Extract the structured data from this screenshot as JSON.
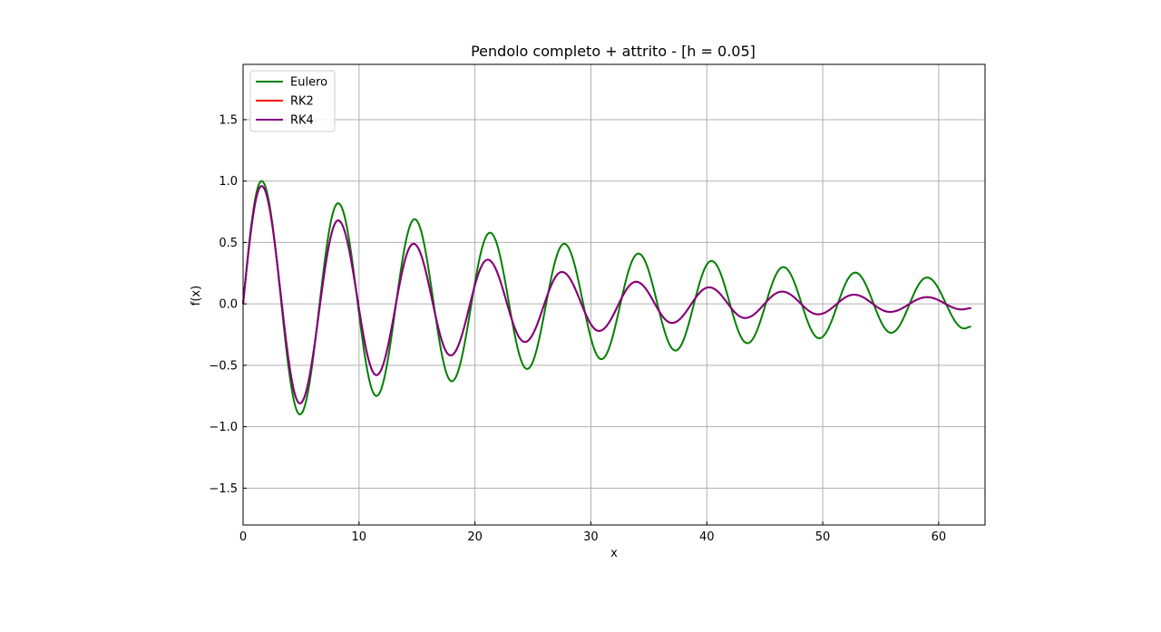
{
  "chart_data": {
    "type": "line",
    "title": "Pendolo completo + attrito - [h = 0.05]",
    "xlabel": "x",
    "ylabel": "f(x)",
    "xlim": [
      0,
      64
    ],
    "ylim": [
      -1.8,
      1.95
    ],
    "xticks": [
      0,
      10,
      20,
      30,
      40,
      50,
      60
    ],
    "yticks": [
      -1.5,
      -1.0,
      -0.5,
      0.0,
      0.5,
      1.0,
      1.5
    ],
    "xtick_labels": [
      "0",
      "10",
      "20",
      "30",
      "40",
      "50",
      "60"
    ],
    "ytick_labels": [
      "−1.5",
      "−1.0",
      "−0.5",
      "0.0",
      "0.5",
      "1.0",
      "1.5"
    ],
    "grid": true,
    "legend": "upper-left",
    "series": [
      {
        "name": "Eulero",
        "color": "#008000",
        "points": [
          [
            0,
            0.0
          ],
          [
            1.6,
            1.0
          ],
          [
            4.9,
            -0.9
          ],
          [
            8.2,
            0.82
          ],
          [
            11.5,
            -0.75
          ],
          [
            14.8,
            0.69
          ],
          [
            18.0,
            -0.63
          ],
          [
            21.3,
            0.58
          ],
          [
            24.5,
            -0.53
          ],
          [
            27.7,
            0.49
          ],
          [
            30.9,
            -0.45
          ],
          [
            34.1,
            0.41
          ],
          [
            37.3,
            -0.38
          ],
          [
            40.4,
            0.35
          ],
          [
            43.5,
            -0.32
          ],
          [
            46.6,
            0.3
          ],
          [
            49.7,
            -0.28
          ],
          [
            52.8,
            0.255
          ],
          [
            55.9,
            -0.235
          ],
          [
            59.0,
            0.215
          ],
          [
            62.2,
            -0.2
          ],
          [
            62.8,
            -0.185
          ]
        ]
      },
      {
        "name": "RK2",
        "color": "#ff0000",
        "points": [
          [
            0,
            0.0
          ],
          [
            1.6,
            0.96
          ],
          [
            4.9,
            -0.81
          ],
          [
            8.2,
            0.68
          ],
          [
            11.5,
            -0.58
          ],
          [
            14.7,
            0.49
          ],
          [
            17.9,
            -0.42
          ],
          [
            21.1,
            0.36
          ],
          [
            24.3,
            -0.31
          ],
          [
            27.5,
            0.26
          ],
          [
            30.7,
            -0.22
          ],
          [
            33.9,
            0.18
          ],
          [
            37.0,
            -0.155
          ],
          [
            40.2,
            0.135
          ],
          [
            43.3,
            -0.115
          ],
          [
            46.5,
            0.1
          ],
          [
            49.6,
            -0.085
          ],
          [
            52.7,
            0.075
          ],
          [
            55.8,
            -0.065
          ],
          [
            59.0,
            0.055
          ],
          [
            62.0,
            -0.045
          ],
          [
            62.8,
            -0.035
          ]
        ]
      },
      {
        "name": "RK4",
        "color": "#800080",
        "points": [
          [
            0,
            0.0
          ],
          [
            1.6,
            0.96
          ],
          [
            4.9,
            -0.81
          ],
          [
            8.2,
            0.68
          ],
          [
            11.5,
            -0.58
          ],
          [
            14.7,
            0.49
          ],
          [
            17.9,
            -0.42
          ],
          [
            21.1,
            0.36
          ],
          [
            24.3,
            -0.31
          ],
          [
            27.5,
            0.26
          ],
          [
            30.7,
            -0.22
          ],
          [
            33.9,
            0.18
          ],
          [
            37.0,
            -0.155
          ],
          [
            40.2,
            0.135
          ],
          [
            43.3,
            -0.115
          ],
          [
            46.5,
            0.1
          ],
          [
            49.6,
            -0.085
          ],
          [
            52.7,
            0.075
          ],
          [
            55.8,
            -0.065
          ],
          [
            59.0,
            0.055
          ],
          [
            62.0,
            -0.045
          ],
          [
            62.8,
            -0.035
          ]
        ]
      }
    ]
  }
}
